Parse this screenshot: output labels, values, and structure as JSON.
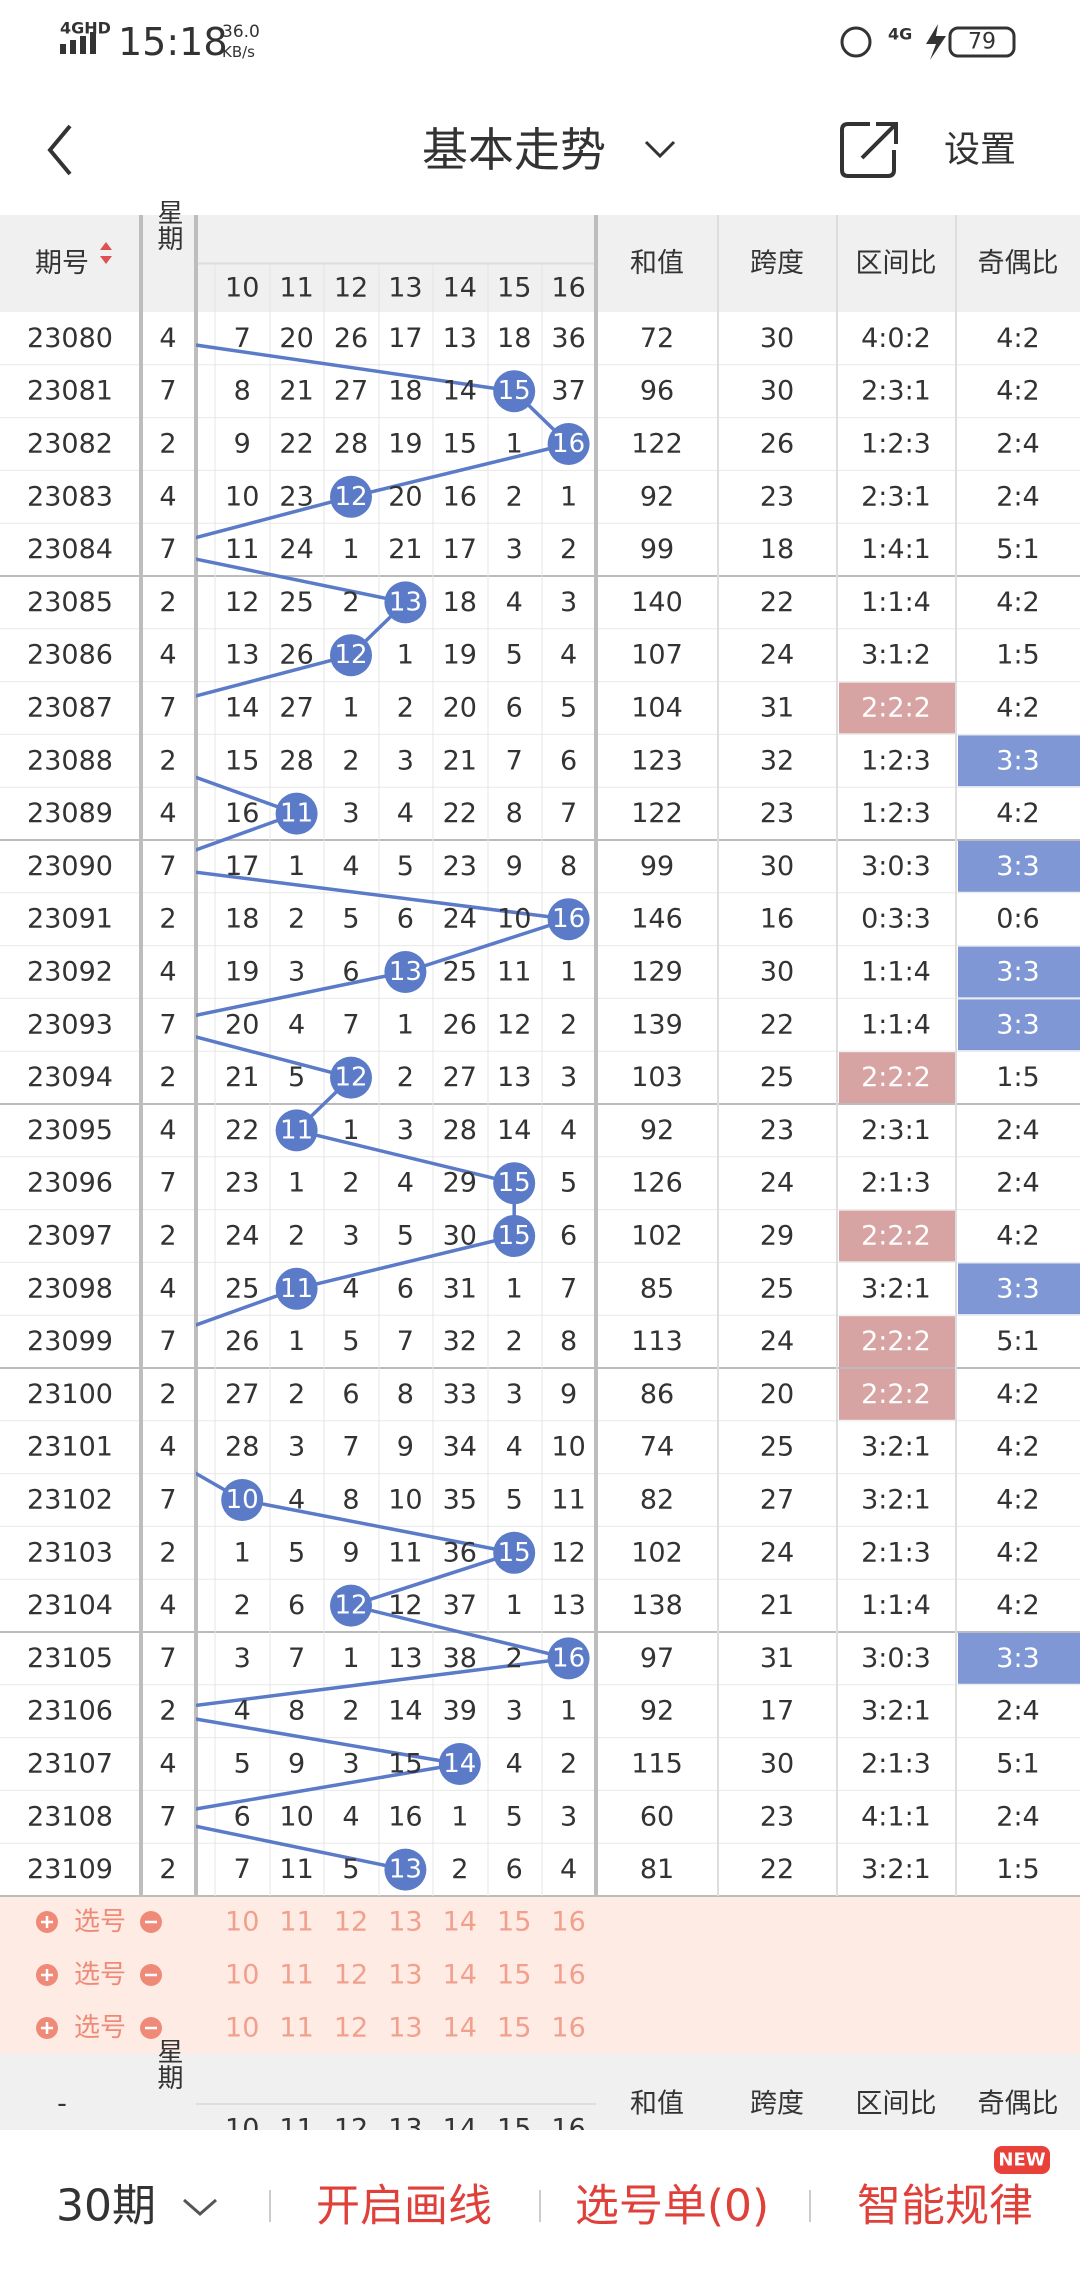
{
  "status_bar": {
    "network": "4GHD",
    "time": "15:18",
    "speed": "36.0",
    "speed_unit": "KB/s",
    "network2": "4G",
    "battery": "79"
  },
  "header": {
    "title": "基本走势",
    "settings": "设置"
  },
  "table": {
    "headers": {
      "period": "期号",
      "weekday": "星期",
      "sum": "和值",
      "span": "跨度",
      "zone": "区间比",
      "parity": "奇偶比"
    },
    "columns": [
      10,
      11,
      12,
      13,
      14,
      15,
      16
    ],
    "ball_color": "#5b7bc8",
    "zone_highlight_color": "#d8a3a3",
    "parity_highlight_color": "#7f97d4",
    "rows": [
      {
        "period": "23080",
        "weekday": 4,
        "cells": [
          7,
          20,
          26,
          17,
          13,
          18,
          36
        ],
        "sum": 72,
        "span": 30,
        "zone": "4:0:2",
        "parity": "4:2"
      },
      {
        "period": "23081",
        "weekday": 7,
        "cells": [
          8,
          21,
          27,
          18,
          14,
          15,
          37
        ],
        "ball": 15,
        "sum": 96,
        "span": 30,
        "zone": "2:3:1",
        "parity": "4:2"
      },
      {
        "period": "23082",
        "weekday": 2,
        "cells": [
          9,
          22,
          28,
          19,
          15,
          1,
          16
        ],
        "ball": 16,
        "sum": 122,
        "span": 26,
        "zone": "1:2:3",
        "parity": "2:4"
      },
      {
        "period": "23083",
        "weekday": 4,
        "cells": [
          10,
          23,
          12,
          20,
          16,
          2,
          1
        ],
        "ball": 12,
        "sum": 92,
        "span": 23,
        "zone": "2:3:1",
        "parity": "2:4"
      },
      {
        "period": "23084",
        "weekday": 7,
        "cells": [
          11,
          24,
          1,
          21,
          17,
          3,
          2
        ],
        "sum": 99,
        "span": 18,
        "zone": "1:4:1",
        "parity": "5:1"
      },
      {
        "period": "23085",
        "weekday": 2,
        "cells": [
          12,
          25,
          2,
          13,
          18,
          4,
          3
        ],
        "ball": 13,
        "sum": 140,
        "span": 22,
        "zone": "1:1:4",
        "parity": "4:2"
      },
      {
        "period": "23086",
        "weekday": 4,
        "cells": [
          13,
          26,
          12,
          1,
          19,
          5,
          4
        ],
        "ball": 12,
        "sum": 107,
        "span": 24,
        "zone": "3:1:2",
        "parity": "1:5"
      },
      {
        "period": "23087",
        "weekday": 7,
        "cells": [
          14,
          27,
          1,
          2,
          20,
          6,
          5
        ],
        "sum": 104,
        "span": 31,
        "zone": "2:2:2",
        "zone_highlight": true,
        "parity": "4:2"
      },
      {
        "period": "23088",
        "weekday": 2,
        "cells": [
          15,
          28,
          2,
          3,
          21,
          7,
          6
        ],
        "sum": 123,
        "span": 32,
        "zone": "1:2:3",
        "parity": "3:3",
        "parity_highlight": true
      },
      {
        "period": "23089",
        "weekday": 4,
        "cells": [
          16,
          11,
          3,
          4,
          22,
          8,
          7
        ],
        "ball": 11,
        "sum": 122,
        "span": 23,
        "zone": "1:2:3",
        "parity": "4:2"
      },
      {
        "period": "23090",
        "weekday": 7,
        "cells": [
          17,
          1,
          4,
          5,
          23,
          9,
          8
        ],
        "sum": 99,
        "span": 30,
        "zone": "3:0:3",
        "parity": "3:3",
        "parity_highlight": true
      },
      {
        "period": "23091",
        "weekday": 2,
        "cells": [
          18,
          2,
          5,
          6,
          24,
          10,
          16
        ],
        "ball": 16,
        "sum": 146,
        "span": 16,
        "zone": "0:3:3",
        "parity": "0:6"
      },
      {
        "period": "23092",
        "weekday": 4,
        "cells": [
          19,
          3,
          6,
          13,
          25,
          11,
          1
        ],
        "ball": 13,
        "sum": 129,
        "span": 30,
        "zone": "1:1:4",
        "parity": "3:3",
        "parity_highlight": true
      },
      {
        "period": "23093",
        "weekday": 7,
        "cells": [
          20,
          4,
          7,
          1,
          26,
          12,
          2
        ],
        "sum": 139,
        "span": 22,
        "zone": "1:1:4",
        "parity": "3:3",
        "parity_highlight": true
      },
      {
        "period": "23094",
        "weekday": 2,
        "cells": [
          21,
          5,
          12,
          2,
          27,
          13,
          3
        ],
        "ball": 12,
        "sum": 103,
        "span": 25,
        "zone": "2:2:2",
        "zone_highlight": true,
        "parity": "1:5"
      },
      {
        "period": "23095",
        "weekday": 4,
        "cells": [
          22,
          11,
          1,
          3,
          28,
          14,
          4
        ],
        "ball": 11,
        "sum": 92,
        "span": 23,
        "zone": "2:3:1",
        "parity": "2:4"
      },
      {
        "period": "23096",
        "weekday": 7,
        "cells": [
          23,
          1,
          2,
          4,
          29,
          15,
          5
        ],
        "ball": 15,
        "sum": 126,
        "span": 24,
        "zone": "2:1:3",
        "parity": "2:4"
      },
      {
        "period": "23097",
        "weekday": 2,
        "cells": [
          24,
          2,
          3,
          5,
          30,
          15,
          6
        ],
        "ball": 15,
        "sum": 102,
        "span": 29,
        "zone": "2:2:2",
        "zone_highlight": true,
        "parity": "4:2"
      },
      {
        "period": "23098",
        "weekday": 4,
        "cells": [
          25,
          11,
          4,
          6,
          31,
          1,
          7
        ],
        "ball": 11,
        "sum": 85,
        "span": 25,
        "zone": "3:2:1",
        "parity": "3:3",
        "parity_highlight": true
      },
      {
        "period": "23099",
        "weekday": 7,
        "cells": [
          26,
          1,
          5,
          7,
          32,
          2,
          8
        ],
        "sum": 113,
        "span": 24,
        "zone": "2:2:2",
        "zone_highlight": true,
        "parity": "5:1"
      },
      {
        "period": "23100",
        "weekday": 2,
        "cells": [
          27,
          2,
          6,
          8,
          33,
          3,
          9
        ],
        "sum": 86,
        "span": 20,
        "zone": "2:2:2",
        "zone_highlight": true,
        "parity": "4:2"
      },
      {
        "period": "23101",
        "weekday": 4,
        "cells": [
          28,
          3,
          7,
          9,
          34,
          4,
          10
        ],
        "sum": 74,
        "span": 25,
        "zone": "3:2:1",
        "parity": "4:2"
      },
      {
        "period": "23102",
        "weekday": 7,
        "cells": [
          10,
          4,
          8,
          10,
          35,
          5,
          11
        ],
        "ball": 10,
        "sum": 82,
        "span": 27,
        "zone": "3:2:1",
        "parity": "4:2"
      },
      {
        "period": "23103",
        "weekday": 2,
        "cells": [
          1,
          5,
          9,
          11,
          36,
          15,
          12
        ],
        "ball": 15,
        "sum": 102,
        "span": 24,
        "zone": "2:1:3",
        "parity": "4:2"
      },
      {
        "period": "23104",
        "weekday": 4,
        "cells": [
          2,
          6,
          12,
          12,
          37,
          1,
          13
        ],
        "ball": 12,
        "sum": 138,
        "span": 21,
        "zone": "1:1:4",
        "parity": "4:2"
      },
      {
        "period": "23105",
        "weekday": 7,
        "cells": [
          3,
          7,
          1,
          13,
          38,
          2,
          16
        ],
        "ball": 16,
        "sum": 97,
        "span": 31,
        "zone": "3:0:3",
        "parity": "3:3",
        "parity_highlight": true
      },
      {
        "period": "23106",
        "weekday": 2,
        "cells": [
          4,
          8,
          2,
          14,
          39,
          3,
          1
        ],
        "sum": 92,
        "span": 17,
        "zone": "3:2:1",
        "parity": "2:4"
      },
      {
        "period": "23107",
        "weekday": 4,
        "cells": [
          5,
          9,
          3,
          15,
          14,
          4,
          2
        ],
        "ball": 14,
        "sum": 115,
        "span": 30,
        "zone": "2:1:3",
        "parity": "5:1"
      },
      {
        "period": "23108",
        "weekday": 7,
        "cells": [
          6,
          10,
          4,
          16,
          1,
          5,
          3
        ],
        "sum": 60,
        "span": 23,
        "zone": "4:1:1",
        "parity": "2:4"
      },
      {
        "period": "23109",
        "weekday": 2,
        "cells": [
          7,
          11,
          5,
          13,
          2,
          6,
          4
        ],
        "ball": 13,
        "sum": 81,
        "span": 22,
        "zone": "3:2:1",
        "parity": "1:5"
      }
    ]
  },
  "selection_rows": [
    "选号",
    "选号",
    "选号"
  ],
  "footer_header": {
    "period": "-"
  },
  "bottom_bar": {
    "periods": "30期",
    "draw": "开启画线",
    "ticket": "选号单(0)",
    "smart": "智能规律",
    "badge": "NEW"
  }
}
